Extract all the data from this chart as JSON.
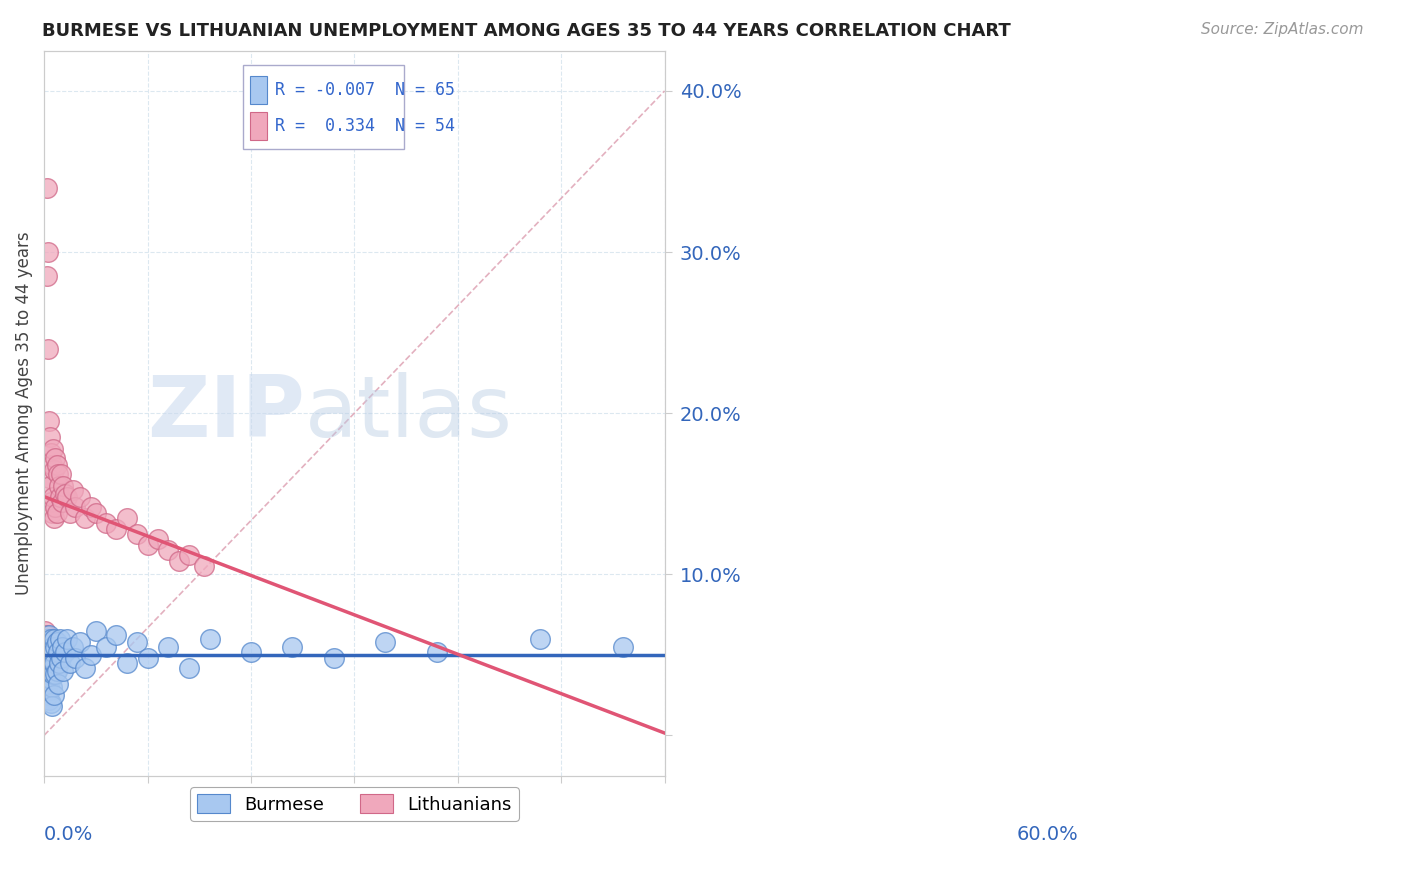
{
  "title": "BURMESE VS LITHUANIAN UNEMPLOYMENT AMONG AGES 35 TO 44 YEARS CORRELATION CHART",
  "source": "Source: ZipAtlas.com",
  "ylabel": "Unemployment Among Ages 35 to 44 years",
  "burmese_color": "#a8c8f0",
  "lithuanian_color": "#f0a8bc",
  "burmese_edge": "#5588cc",
  "lithuanian_edge": "#d06888",
  "trend_burmese_color": "#3366bb",
  "trend_lithuanian_color": "#e05575",
  "diag_color": "#e0a8b8",
  "background_color": "#ffffff",
  "grid_color": "#dce8f0",
  "r1_color": "#cc2222",
  "r2_color": "#2244cc",
  "legend_text_color": "#3366cc",
  "burmese_x": [
    0.001,
    0.001,
    0.002,
    0.002,
    0.003,
    0.003,
    0.003,
    0.004,
    0.004,
    0.004,
    0.005,
    0.005,
    0.005,
    0.005,
    0.006,
    0.006,
    0.006,
    0.007,
    0.007,
    0.007,
    0.007,
    0.008,
    0.008,
    0.008,
    0.008,
    0.009,
    0.009,
    0.01,
    0.01,
    0.01,
    0.011,
    0.011,
    0.012,
    0.012,
    0.013,
    0.013,
    0.014,
    0.015,
    0.016,
    0.017,
    0.018,
    0.02,
    0.022,
    0.025,
    0.028,
    0.03,
    0.035,
    0.04,
    0.045,
    0.05,
    0.06,
    0.07,
    0.08,
    0.09,
    0.1,
    0.12,
    0.14,
    0.16,
    0.2,
    0.24,
    0.28,
    0.33,
    0.38,
    0.48,
    0.56
  ],
  "burmese_y": [
    0.058,
    0.042,
    0.055,
    0.038,
    0.06,
    0.045,
    0.03,
    0.055,
    0.04,
    0.025,
    0.062,
    0.048,
    0.035,
    0.022,
    0.058,
    0.043,
    0.028,
    0.06,
    0.048,
    0.035,
    0.02,
    0.055,
    0.042,
    0.03,
    0.018,
    0.052,
    0.038,
    0.06,
    0.045,
    0.025,
    0.055,
    0.038,
    0.058,
    0.04,
    0.052,
    0.032,
    0.045,
    0.06,
    0.048,
    0.055,
    0.04,
    0.052,
    0.06,
    0.045,
    0.055,
    0.048,
    0.058,
    0.042,
    0.05,
    0.065,
    0.055,
    0.062,
    0.045,
    0.058,
    0.048,
    0.055,
    0.042,
    0.06,
    0.052,
    0.055,
    0.048,
    0.058,
    0.052,
    0.06,
    0.055
  ],
  "lithuanian_x": [
    0.001,
    0.001,
    0.002,
    0.002,
    0.002,
    0.003,
    0.003,
    0.003,
    0.004,
    0.004,
    0.004,
    0.005,
    0.005,
    0.005,
    0.006,
    0.006,
    0.006,
    0.007,
    0.007,
    0.008,
    0.008,
    0.009,
    0.009,
    0.01,
    0.01,
    0.011,
    0.011,
    0.012,
    0.012,
    0.013,
    0.014,
    0.015,
    0.016,
    0.017,
    0.018,
    0.02,
    0.022,
    0.025,
    0.028,
    0.03,
    0.035,
    0.04,
    0.045,
    0.05,
    0.06,
    0.07,
    0.08,
    0.09,
    0.1,
    0.11,
    0.12,
    0.13,
    0.14,
    0.155
  ],
  "lithuanian_y": [
    0.065,
    0.048,
    0.062,
    0.045,
    0.028,
    0.34,
    0.285,
    0.06,
    0.3,
    0.24,
    0.055,
    0.195,
    0.16,
    0.048,
    0.185,
    0.155,
    0.042,
    0.175,
    0.145,
    0.168,
    0.138,
    0.178,
    0.148,
    0.165,
    0.135,
    0.172,
    0.142,
    0.168,
    0.138,
    0.162,
    0.155,
    0.148,
    0.162,
    0.145,
    0.155,
    0.15,
    0.148,
    0.138,
    0.152,
    0.142,
    0.148,
    0.135,
    0.142,
    0.138,
    0.132,
    0.128,
    0.135,
    0.125,
    0.118,
    0.122,
    0.115,
    0.108,
    0.112,
    0.105
  ],
  "xlim": [
    0.0,
    0.6
  ],
  "ylim": [
    -0.025,
    0.425
  ],
  "ytick_positions": [
    0.0,
    0.1,
    0.2,
    0.3,
    0.4
  ],
  "ytick_labels": [
    "",
    "10.0%",
    "20.0%",
    "30.0%",
    "40.0%"
  ],
  "xtick_positions": [
    0.0,
    0.1,
    0.2,
    0.3,
    0.4,
    0.5,
    0.6
  ]
}
